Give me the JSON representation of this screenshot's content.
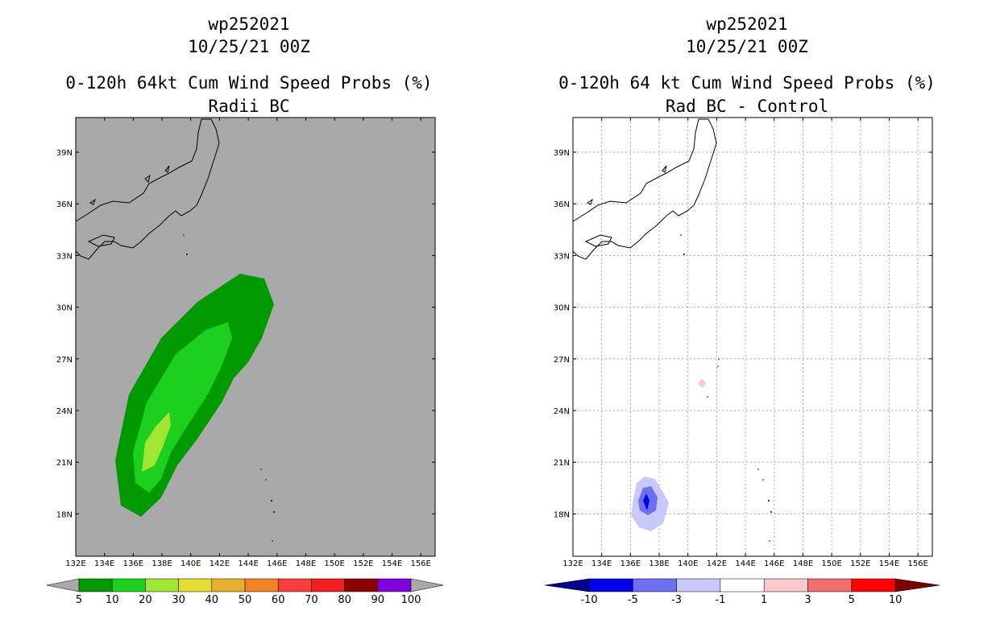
{
  "left_panel": {
    "storm_id": "wp252021",
    "datetime": "10/25/21 00Z",
    "product": "0-120h 64kt Cum Wind Speed Probs (%)",
    "subtitle": "Radii BC",
    "map_background": "#a9a9a9",
    "contour_colors": {
      "5-10": "#009a00",
      "10-20": "#1ed01e",
      "20-30": "#a1e632"
    },
    "colorbar": {
      "labels": [
        "5",
        "10",
        "20",
        "30",
        "40",
        "50",
        "60",
        "70",
        "80",
        "90",
        "100"
      ],
      "colors": [
        "#009a00",
        "#1ed01e",
        "#a1e632",
        "#e6dc32",
        "#e6af2d",
        "#f08228",
        "#fa3c3c",
        "#f01e1e",
        "#8b0000",
        "#7f00dc"
      ]
    }
  },
  "right_panel": {
    "storm_id": "wp252021",
    "datetime": "10/25/21 00Z",
    "product": "0-120h 64 kt Cum Wind Speed Probs (%)",
    "subtitle": "Rad BC - Control",
    "map_background": "#ffffff",
    "colorbar": {
      "labels": [
        "-10",
        "-5",
        "-3",
        "-1",
        "1",
        "3",
        "5",
        "10"
      ],
      "colors": [
        "#0000e6",
        "#6e6ef0",
        "#c8c8fa",
        "#ffffff",
        "#fac8c8",
        "#f06e6e",
        "#ff0000"
      ],
      "low_arrow": "#00008b",
      "high_arrow": "#7a0000"
    }
  },
  "axes": {
    "lon_ticks": [
      "132E",
      "134E",
      "136E",
      "138E",
      "140E",
      "142E",
      "144E",
      "146E",
      "148E",
      "150E",
      "152E",
      "154E",
      "156E"
    ],
    "lat_ticks": [
      "39N",
      "36N",
      "33N",
      "30N",
      "27N",
      "24N",
      "21N",
      "18N"
    ]
  }
}
